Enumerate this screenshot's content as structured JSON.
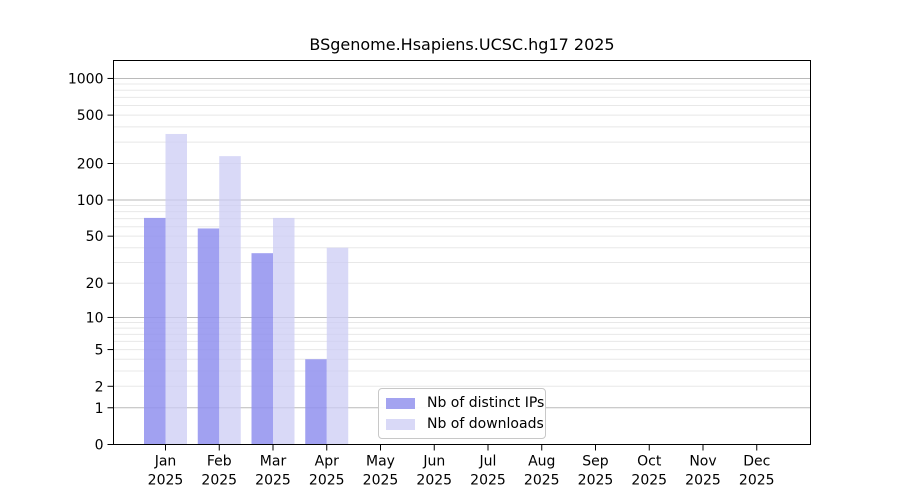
{
  "chart_data": {
    "type": "bar",
    "title": "BSgenome.Hsapiens.UCSC.hg17 2025",
    "year": "2025",
    "categories": [
      "Jan",
      "Feb",
      "Mar",
      "Apr",
      "May",
      "Jun",
      "Jul",
      "Aug",
      "Sep",
      "Oct",
      "Nov",
      "Dec"
    ],
    "series": [
      {
        "name": "Nb of distinct IPs",
        "color": "#a3a3f0",
        "fill": "#9090ee",
        "opacity": 0.85,
        "values": [
          71,
          58,
          36,
          4,
          0,
          0,
          0,
          0,
          0,
          0,
          0,
          0
        ]
      },
      {
        "name": "Nb of downloads",
        "color": "#d9d9f7",
        "fill": "#ccccf4",
        "opacity": 0.75,
        "values": [
          350,
          230,
          71,
          40,
          0,
          0,
          0,
          0,
          0,
          0,
          0,
          0
        ]
      }
    ],
    "y_ticks": [
      0,
      1,
      2,
      5,
      10,
      20,
      50,
      100,
      200,
      500,
      1000
    ],
    "y_scale": "log10(1+v)",
    "ylim": [
      0,
      1400
    ],
    "grid": true,
    "legend_position": "inside-bottom-center",
    "axis_color": "#000000",
    "major_grid_color": "#bababa",
    "minor_grid_color": "#e8e8e8"
  }
}
